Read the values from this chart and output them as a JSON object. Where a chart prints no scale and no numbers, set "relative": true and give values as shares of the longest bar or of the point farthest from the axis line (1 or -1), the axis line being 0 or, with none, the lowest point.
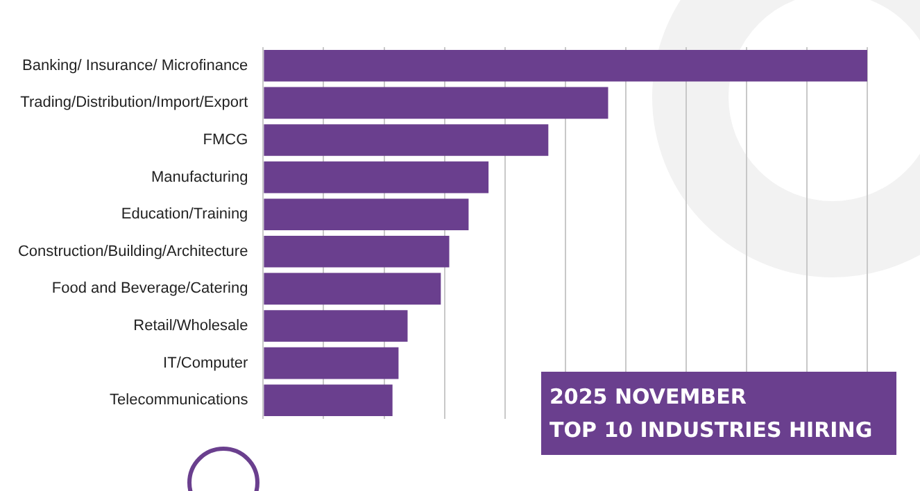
{
  "chart_data": {
    "type": "bar",
    "orientation": "horizontal",
    "relative": true,
    "title": "2025 NOVEMBER",
    "subtitle": "TOP 10 INDUSTRIES HIRING",
    "grid": "x",
    "legend": false,
    "categories": [
      "Banking/ Insurance/ Microfinance",
      "Trading/Distribution/Import/Export",
      "FMCG",
      "Manufacturing",
      "Education/Training",
      "Construction/Building/Architecture",
      "Food and Beverage/Catering",
      "Retail/Wholesale",
      "IT/Computer",
      "Telecommunications"
    ],
    "values": [
      1,
      0.571,
      0.472,
      0.373,
      0.34,
      0.308,
      0.294,
      0.239,
      0.224,
      0.214
    ],
    "color": "#6a3f8e"
  }
}
